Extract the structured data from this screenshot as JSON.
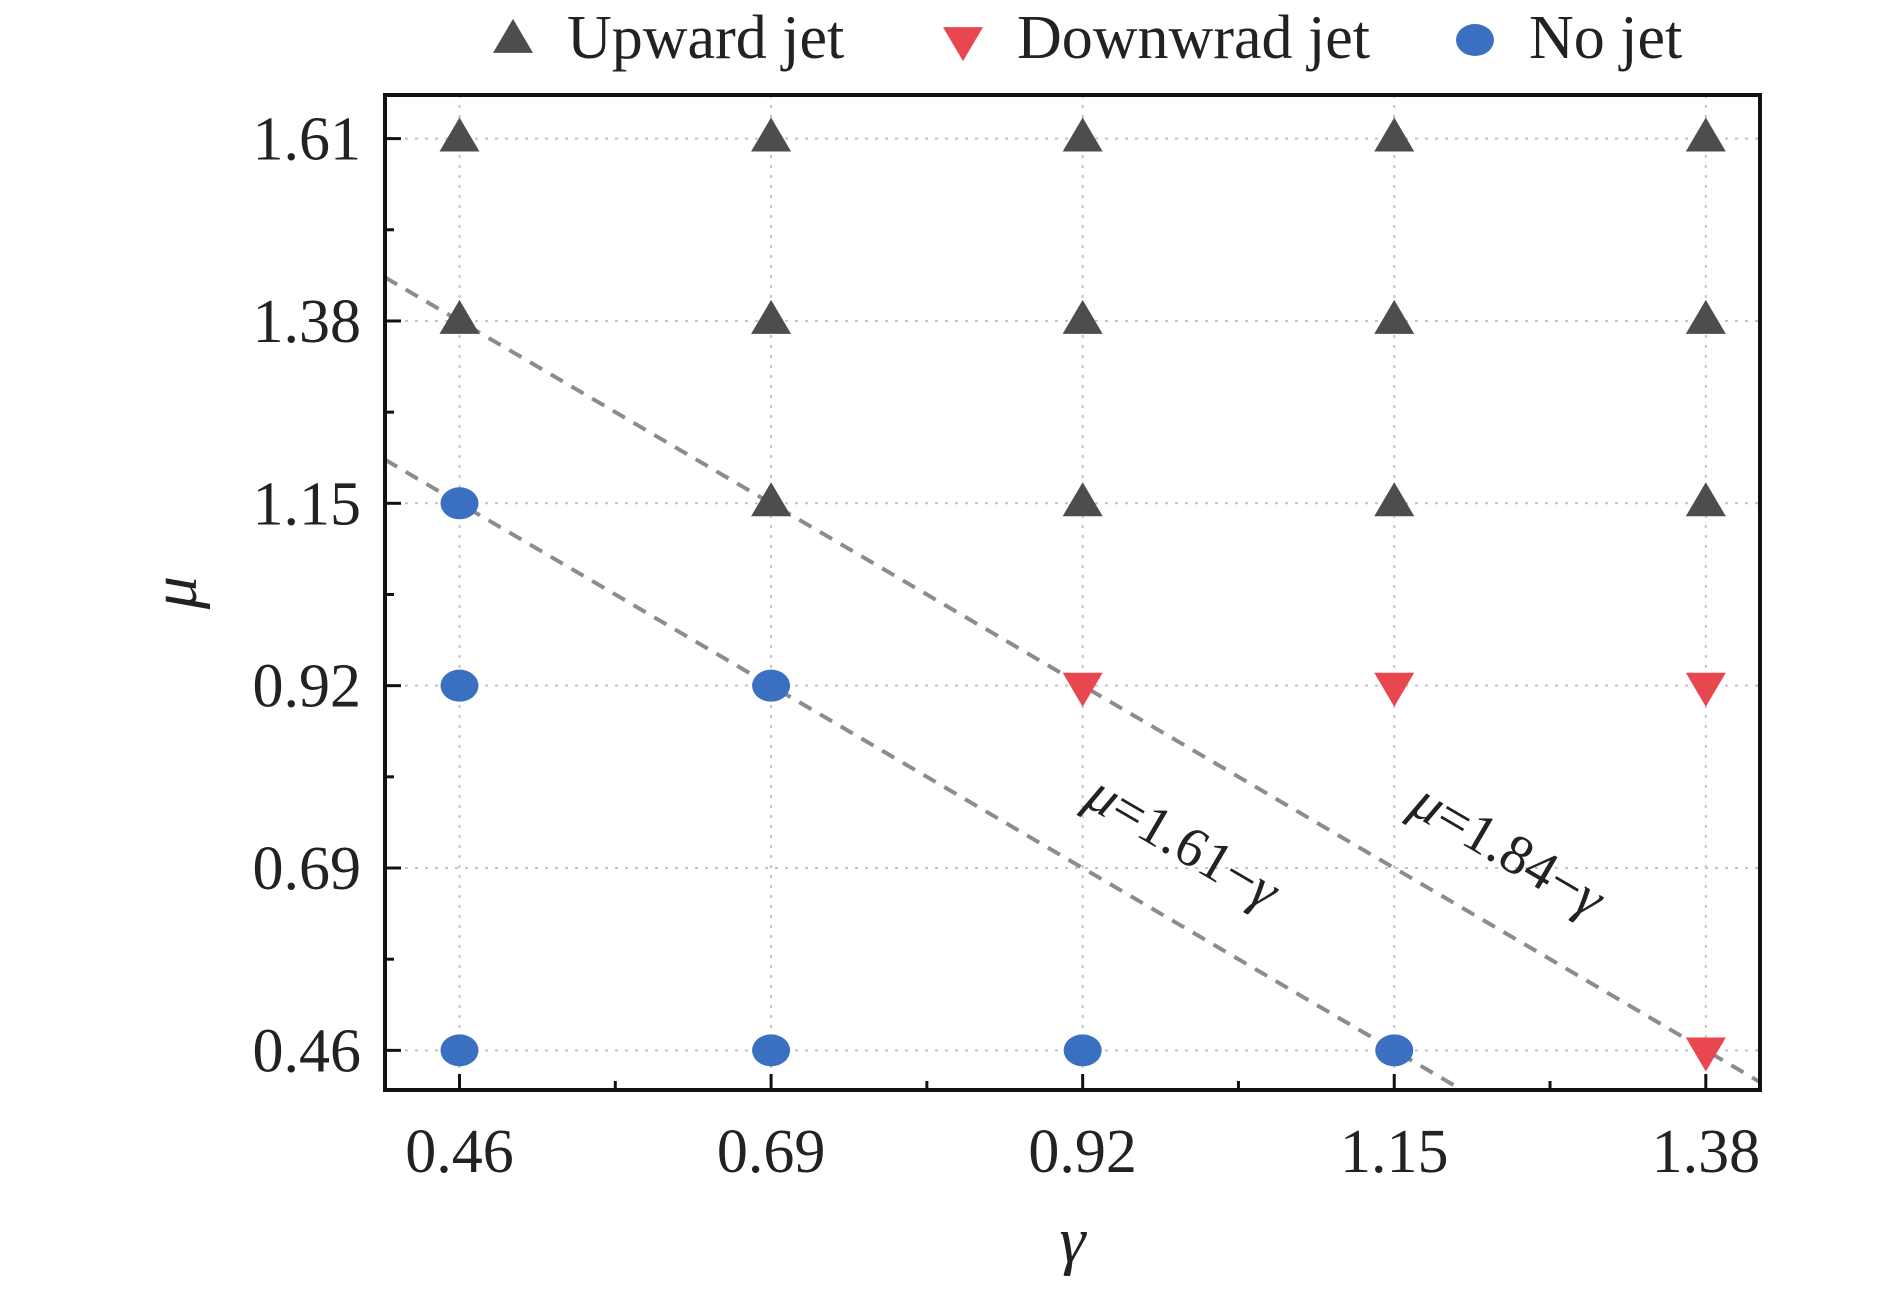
{
  "chart_data": {
    "type": "scatter",
    "title": "",
    "xlabel": "γ",
    "ylabel": "μ",
    "xlim": [
      0.405,
      1.42
    ],
    "ylim": [
      0.41,
      1.665
    ],
    "x_ticks": [
      "0.46",
      "0.69",
      "0.92",
      "1.15",
      "1.38"
    ],
    "y_ticks": [
      "0.46",
      "0.69",
      "0.92",
      "1.15",
      "1.38",
      "1.61"
    ],
    "grid": true,
    "legend_position": "top, outside plot",
    "series": [
      {
        "name": "Upward jet",
        "marker": "triangle-up",
        "color": "#4d4d4d",
        "points": [
          {
            "x": 0.46,
            "y": 1.61
          },
          {
            "x": 0.69,
            "y": 1.61
          },
          {
            "x": 0.92,
            "y": 1.61
          },
          {
            "x": 1.15,
            "y": 1.61
          },
          {
            "x": 1.38,
            "y": 1.61
          },
          {
            "x": 0.46,
            "y": 1.38
          },
          {
            "x": 0.69,
            "y": 1.38
          },
          {
            "x": 0.92,
            "y": 1.38
          },
          {
            "x": 1.15,
            "y": 1.38
          },
          {
            "x": 1.38,
            "y": 1.38
          },
          {
            "x": 0.69,
            "y": 1.15
          },
          {
            "x": 0.92,
            "y": 1.15
          },
          {
            "x": 1.15,
            "y": 1.15
          },
          {
            "x": 1.38,
            "y": 1.15
          }
        ]
      },
      {
        "name": "Downwrad jet",
        "marker": "triangle-down",
        "color": "#e8474f",
        "points": [
          {
            "x": 0.92,
            "y": 0.92
          },
          {
            "x": 1.15,
            "y": 0.92
          },
          {
            "x": 1.38,
            "y": 0.92
          },
          {
            "x": 1.38,
            "y": 0.46
          }
        ]
      },
      {
        "name": "No jet",
        "marker": "circle",
        "color": "#3b6fbf",
        "points": [
          {
            "x": 0.46,
            "y": 1.15
          },
          {
            "x": 0.46,
            "y": 0.92
          },
          {
            "x": 0.69,
            "y": 0.92
          },
          {
            "x": 0.46,
            "y": 0.46
          },
          {
            "x": 0.69,
            "y": 0.46
          },
          {
            "x": 0.92,
            "y": 0.46
          },
          {
            "x": 1.15,
            "y": 0.46
          }
        ]
      }
    ],
    "reference_lines": [
      {
        "c": 1.61,
        "label_mu": "μ",
        "label_rest": "=1.61−",
        "label_gamma": "γ",
        "style": "dashed",
        "color": "#8c8c8c"
      },
      {
        "c": 1.84,
        "label_mu": "μ",
        "label_rest": "=1.84−",
        "label_gamma": "γ",
        "style": "dashed",
        "color": "#8c8c8c"
      }
    ]
  }
}
